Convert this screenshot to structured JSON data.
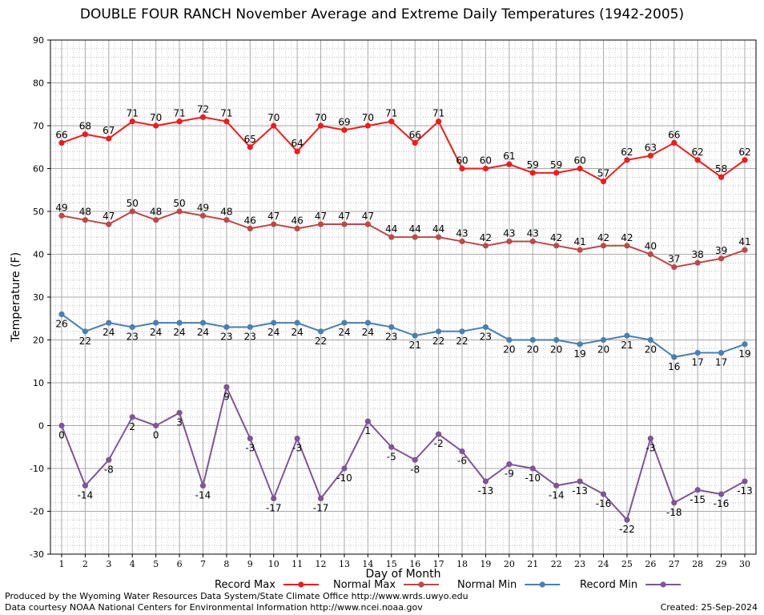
{
  "chart_data": {
    "type": "line",
    "title": "DOUBLE FOUR RANCH November Average and Extreme Daily Temperatures (1942-2005)",
    "xlabel": "Day of Month",
    "ylabel": "Temperature (F)",
    "xlim": [
      1,
      30
    ],
    "ylim": [
      -30,
      90
    ],
    "y_ticks": [
      -30,
      -20,
      -10,
      0,
      10,
      20,
      30,
      40,
      50,
      60,
      70,
      80,
      90
    ],
    "x": [
      1,
      2,
      3,
      4,
      5,
      6,
      7,
      8,
      9,
      10,
      11,
      12,
      13,
      14,
      15,
      16,
      17,
      18,
      19,
      20,
      21,
      22,
      23,
      24,
      25,
      26,
      27,
      28,
      29,
      30
    ],
    "grid": true,
    "legend": "bottom",
    "series": [
      {
        "name": "Record Max",
        "color": "#ee1c1c",
        "label_position": "above",
        "values": [
          66,
          68,
          67,
          71,
          70,
          71,
          72,
          71,
          65,
          70,
          64,
          70,
          69,
          70,
          71,
          66,
          71,
          60,
          60,
          61,
          59,
          59,
          60,
          57,
          62,
          63,
          66,
          62,
          58,
          62
        ]
      },
      {
        "name": "Normal Max",
        "color": "#b94a48",
        "label_position": "above",
        "values": [
          49,
          48,
          47,
          50,
          48,
          50,
          49,
          48,
          46,
          47,
          46,
          47,
          47,
          47,
          44,
          44,
          44,
          43,
          42,
          43,
          43,
          42,
          41,
          42,
          42,
          40,
          37,
          38,
          39,
          41
        ]
      },
      {
        "name": "Normal Min",
        "color": "#4a7fb0",
        "label_position": "below",
        "values": [
          26,
          22,
          24,
          23,
          24,
          24,
          24,
          23,
          23,
          24,
          24,
          22,
          24,
          24,
          23,
          21,
          22,
          22,
          23,
          20,
          20,
          20,
          19,
          20,
          21,
          20,
          16,
          17,
          17,
          19
        ]
      },
      {
        "name": "Record Min",
        "color": "#7d5598",
        "label_position": "below",
        "values": [
          0,
          -14,
          -8,
          2,
          0,
          3,
          -14,
          9,
          -3,
          -17,
          -3,
          -17,
          -10,
          1,
          -5,
          -8,
          -2,
          -6,
          -13,
          -9,
          -10,
          -14,
          -13,
          -16,
          -22,
          -3,
          -18,
          -15,
          -16,
          -13
        ]
      }
    ]
  },
  "footer": {
    "credit_line1": "Produced by the Wyoming Water Resources Data System/State Climate Office http://www.wrds.uwyo.edu",
    "credit_line2": "Data courtesy NOAA National Centers for Environmental Information http://www.ncei.noaa.gov",
    "created": "Created:  25-Sep-2024"
  }
}
